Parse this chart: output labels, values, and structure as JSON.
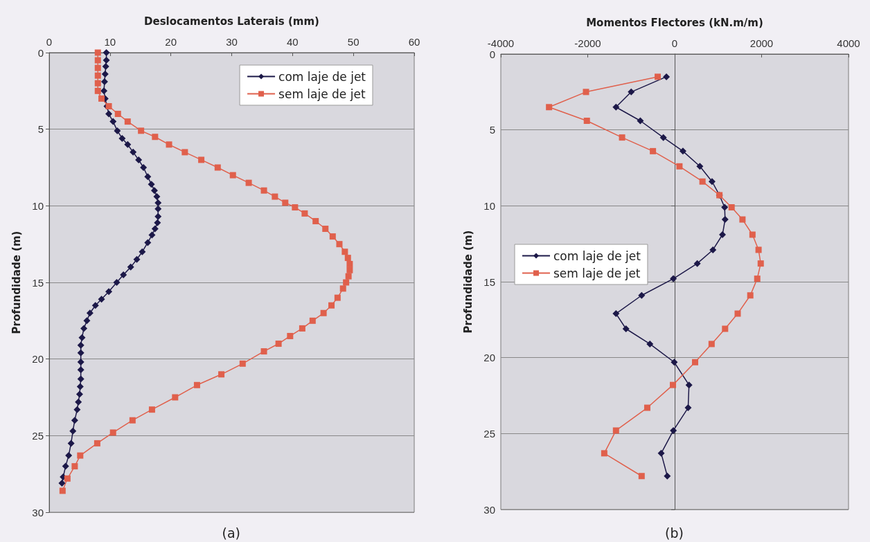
{
  "chart_data": [
    {
      "type": "line",
      "xlabel": "Deslocamentos Laterais (mm)",
      "ylabel": "Profundidade (m)",
      "xlim": [
        0,
        60
      ],
      "xticks": [
        0,
        10,
        20,
        30,
        40,
        50,
        60
      ],
      "ylim": [
        30,
        0
      ],
      "yticks": [
        0,
        5,
        10,
        15,
        20,
        25,
        30
      ],
      "grid": "y",
      "legend": "top right",
      "annotations": [
        "(a)"
      ],
      "series": [
        {
          "name": "com laje de jet",
          "color": "#1c1848",
          "marker": "diamond",
          "x": [
            9.4,
            9.4,
            9.3,
            9.2,
            9.1,
            9.0,
            9.2,
            9.5,
            9.8,
            10.5,
            11.2,
            12.0,
            12.9,
            13.8,
            14.7,
            15.5,
            16.2,
            16.8,
            17.3,
            17.7,
            17.9,
            17.9,
            17.9,
            17.8,
            17.4,
            16.9,
            16.2,
            15.3,
            14.4,
            13.4,
            12.2,
            11.1,
            9.8,
            8.6,
            7.6,
            6.7,
            6.2,
            5.7,
            5.4,
            5.2,
            5.2,
            5.2,
            5.2,
            5.2,
            5.1,
            5.0,
            4.8,
            4.6,
            4.2,
            3.9,
            3.6,
            3.2,
            2.7,
            2.3,
            2.1
          ],
          "values": [
            0,
            0.5,
            0.9,
            1.4,
            1.9,
            2.5,
            3.0,
            3.5,
            4.0,
            4.5,
            5.1,
            5.6,
            6.0,
            6.5,
            7.0,
            7.5,
            8.1,
            8.6,
            9.0,
            9.4,
            9.8,
            10.2,
            10.7,
            11.1,
            11.5,
            11.9,
            12.4,
            13.0,
            13.5,
            14.0,
            14.5,
            15.0,
            15.6,
            16.1,
            16.5,
            17.0,
            17.5,
            18.0,
            18.6,
            19.1,
            19.6,
            20.2,
            20.7,
            21.3,
            21.8,
            22.3,
            22.8,
            23.3,
            24.0,
            24.7,
            25.5,
            26.3,
            27.0,
            27.7,
            28.1
          ]
        },
        {
          "name": "sem laje de jet",
          "color": "#e0604c",
          "marker": "square",
          "x": [
            8.0,
            8.0,
            8.0,
            8.0,
            8.0,
            8.0,
            8.6,
            9.8,
            11.3,
            12.9,
            15.1,
            17.4,
            19.7,
            22.3,
            25.0,
            27.7,
            30.2,
            32.8,
            35.3,
            37.1,
            38.8,
            40.4,
            42.0,
            43.8,
            45.4,
            46.6,
            47.7,
            48.6,
            49.1,
            49.4,
            49.4,
            49.2,
            48.8,
            48.3,
            47.4,
            46.4,
            45.1,
            43.3,
            41.6,
            39.6,
            37.7,
            35.3,
            31.8,
            28.3,
            24.3,
            20.7,
            16.9,
            13.7,
            10.5,
            7.9,
            5.1,
            4.2,
            3.0,
            2.2
          ],
          "values": [
            0,
            0.5,
            1,
            1.5,
            2,
            2.5,
            3.0,
            3.5,
            4.0,
            4.5,
            5.1,
            5.5,
            6.0,
            6.5,
            7.0,
            7.5,
            8.0,
            8.5,
            9.0,
            9.4,
            9.8,
            10.1,
            10.5,
            11.0,
            11.5,
            12.0,
            12.5,
            13.0,
            13.4,
            13.8,
            14.2,
            14.6,
            15.0,
            15.4,
            16.0,
            16.5,
            17.0,
            17.5,
            18.0,
            18.5,
            19.0,
            19.5,
            20.3,
            21.0,
            21.7,
            22.5,
            23.3,
            24.0,
            24.8,
            25.5,
            26.3,
            27.0,
            27.8,
            28.6
          ]
        }
      ]
    },
    {
      "type": "line",
      "xlabel": "Momentos Flectores (kN.m/m)",
      "ylabel": "Profundidade (m)",
      "xlim": [
        -4000,
        4000
      ],
      "xticks": [
        -4000,
        -2000,
        0,
        2000,
        4000
      ],
      "ylim": [
        30,
        0
      ],
      "yticks": [
        0,
        5,
        10,
        15,
        20,
        25,
        30
      ],
      "grid": "y",
      "legend": "left",
      "annotations": [
        "(b)"
      ],
      "series": [
        {
          "name": "com laje de jet",
          "color": "#1c1848",
          "marker": "diamond",
          "x": [
            -190,
            -1000,
            -1350,
            -790,
            -260,
            190,
            580,
            860,
            1030,
            1150,
            1160,
            1100,
            880,
            520,
            -30,
            -760,
            -1350,
            -1120,
            -570,
            -10,
            330,
            310,
            -30,
            -310,
            -170
          ],
          "values": [
            1.5,
            2.5,
            3.5,
            4.4,
            5.5,
            6.4,
            7.4,
            8.4,
            9.3,
            10.1,
            10.9,
            11.9,
            12.9,
            13.8,
            14.8,
            15.9,
            17.1,
            18.1,
            19.1,
            20.3,
            21.8,
            23.3,
            24.8,
            26.3,
            27.8
          ]
        },
        {
          "name": "sem laje de jet",
          "color": "#e0604c",
          "marker": "square",
          "x": [
            -390,
            -2040,
            -2890,
            -2020,
            -1210,
            -500,
            110,
            640,
            1030,
            1310,
            1560,
            1790,
            1930,
            1980,
            1900,
            1740,
            1450,
            1160,
            850,
            470,
            -40,
            -630,
            -1350,
            -1620,
            -760
          ],
          "values": [
            1.5,
            2.5,
            3.5,
            4.4,
            5.5,
            6.4,
            7.4,
            8.4,
            9.3,
            10.1,
            10.9,
            11.9,
            12.9,
            13.8,
            14.8,
            15.9,
            17.1,
            18.1,
            19.1,
            20.3,
            21.8,
            23.3,
            24.8,
            26.3,
            27.8
          ]
        }
      ]
    }
  ]
}
